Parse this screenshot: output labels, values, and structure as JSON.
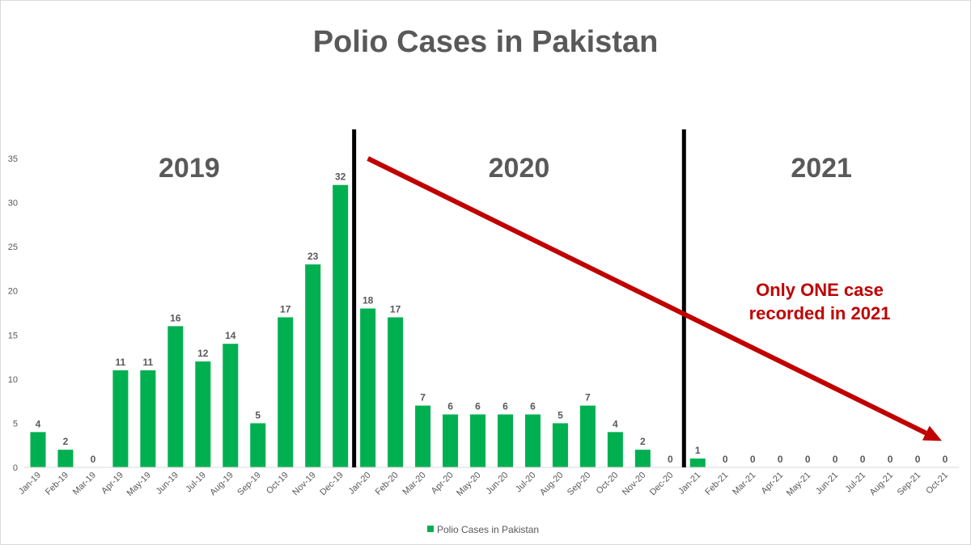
{
  "chart_data": {
    "type": "bar",
    "title": "Polio Cases in Pakistan",
    "categories": [
      "Jan-19",
      "Feb-19",
      "Mar-19",
      "Apr-19",
      "May-19",
      "Jun-19",
      "Jul-19",
      "Aug-19",
      "Sep-19",
      "Oct-19",
      "Nov-19",
      "Dec-19",
      "Jan-20",
      "Feb-20",
      "Mar-20",
      "Apr-20",
      "May-20",
      "Jun-20",
      "Jul-20",
      "Aug-20",
      "Sep-20",
      "Oct-20",
      "Nov-20",
      "Dec-20",
      "Jan-21",
      "Feb-21",
      "Mar-21",
      "Apr-21",
      "May-21",
      "Jun-21",
      "Jul-21",
      "Aug-21",
      "Sep-21",
      "Oct-21"
    ],
    "series": [
      {
        "name": "Polio Cases in Pakistan",
        "values": [
          4,
          2,
          0,
          11,
          11,
          16,
          12,
          14,
          5,
          17,
          23,
          32,
          18,
          17,
          7,
          6,
          6,
          6,
          6,
          5,
          7,
          4,
          2,
          0,
          1,
          0,
          0,
          0,
          0,
          0,
          0,
          0,
          0,
          0
        ]
      }
    ],
    "ylim": [
      0,
      35
    ],
    "yticks": [
      0,
      5,
      10,
      15,
      20,
      25,
      30,
      35
    ],
    "grid": false,
    "legend_position": "bottom",
    "year_labels": [
      {
        "text": "2019",
        "start": "Jan-19"
      },
      {
        "text": "2020",
        "start": "Jan-20"
      },
      {
        "text": "2021",
        "start": "Jan-21"
      }
    ],
    "dividers_after": [
      "Dec-19",
      "Dec-20"
    ],
    "annotation": {
      "lines": [
        "Only ONE case",
        "recorded in 2021"
      ],
      "arrow_from": {
        "category": "Jan-20",
        "value": 35
      },
      "arrow_to": {
        "category": "Oct-21",
        "value": 3
      }
    }
  },
  "colors": {
    "bar": "#00b050",
    "text": "#595959",
    "annotation": "#c00000",
    "divider": "#000000",
    "axis": "#d9d9d9"
  }
}
